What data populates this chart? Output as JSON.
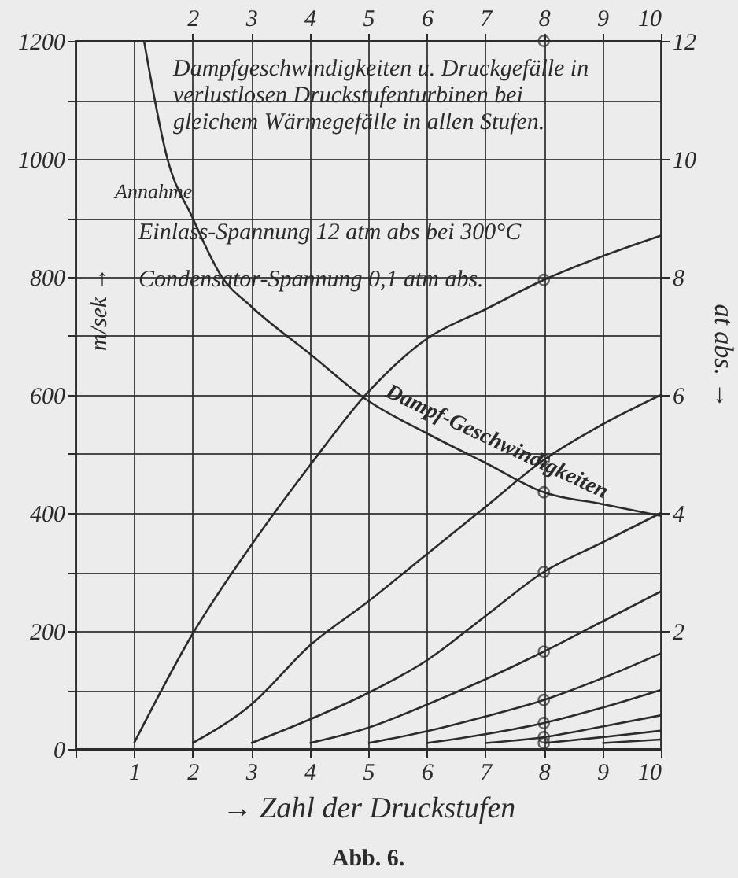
{
  "chart_data": {
    "type": "line",
    "title": "Dampfgeschwindigkeiten u. Druckgefälle in verlustlosen Druckstufenturbinen bei gleichem Wärmegefälle in allen Stufen.",
    "xlabel": "→ Zahl der Druckstufen",
    "ylabel": "m/sek →",
    "y2label": "at abs. →",
    "annotations": [
      "Annahme",
      "Einlass-Spannung 12 atm abs bei 300°C",
      "Condensator-Spannung 0,1 atm abs.",
      "Abb. 6."
    ],
    "xlim": [
      0,
      10
    ],
    "xticks": [
      {
        "value": 0,
        "label": null
      },
      1,
      2,
      3,
      4,
      5,
      6,
      7,
      8,
      9,
      10
    ],
    "x2lim": [
      0,
      10
    ],
    "x2ticks": [
      2,
      3,
      4,
      5,
      6,
      7,
      8,
      9,
      10
    ],
    "ylim": [
      0,
      1200
    ],
    "yticks": [
      0,
      {
        "value": 100,
        "label": null
      },
      200,
      {
        "value": 300,
        "label": null
      },
      400,
      {
        "value": 500,
        "label": null
      },
      600,
      {
        "value": 700,
        "label": null
      },
      800,
      {
        "value": 900,
        "label": null
      },
      1000,
      {
        "value": 1100,
        "label": null
      },
      1200
    ],
    "y2lim": [
      0,
      12
    ],
    "y2ticks": [
      2,
      4,
      6,
      8,
      10,
      12
    ],
    "grid": true,
    "line_style": "solid",
    "series": [
      {
        "name": "Dampf-Geschwindigkeiten",
        "color": "#2b2b2b",
        "marker": "none",
        "x": [
          1.17,
          1.57,
          2,
          2.5,
          3,
          4,
          5,
          6,
          7,
          8,
          9,
          10
        ],
        "values": [
          1200,
          1000,
          900,
          800,
          750,
          670,
          590,
          535,
          485,
          435,
          415,
          395
        ]
      },
      {
        "color": "#2b2b2b",
        "axis": "y2",
        "marker": "none",
        "x": [
          1,
          2,
          3,
          4,
          5,
          6,
          7,
          8,
          9,
          10
        ],
        "values": [
          0.1,
          1.95,
          3.45,
          4.8,
          6.05,
          6.95,
          7.45,
          7.95,
          8.35,
          8.7
        ]
      },
      {
        "color": "#2b2b2b",
        "axis": "y2",
        "marker": "none",
        "x": [
          2,
          3,
          4,
          5,
          6,
          7,
          8,
          9,
          10
        ],
        "values": [
          0.1,
          0.75,
          1.75,
          2.5,
          3.3,
          4.1,
          4.9,
          5.5,
          6.0
        ]
      },
      {
        "color": "#2b2b2b",
        "axis": "y2",
        "marker": "none",
        "x": [
          3,
          4,
          5,
          6,
          7,
          8,
          9,
          10
        ],
        "values": [
          0.1,
          0.5,
          0.95,
          1.5,
          2.25,
          3.0,
          3.5,
          4.0
        ]
      },
      {
        "color": "#2b2b2b",
        "axis": "y2",
        "marker": "none",
        "x": [
          4,
          5,
          6,
          7,
          8,
          9,
          10
        ],
        "values": [
          0.1,
          0.36,
          0.75,
          1.18,
          1.65,
          2.16,
          2.67
        ]
      },
      {
        "color": "#2b2b2b",
        "axis": "y2",
        "marker": "none",
        "x": [
          5,
          6,
          7,
          8,
          9,
          10
        ],
        "values": [
          0.1,
          0.3,
          0.55,
          0.83,
          1.2,
          1.62
        ]
      },
      {
        "color": "#2b2b2b",
        "axis": "y2",
        "marker": "none",
        "x": [
          6,
          7,
          8,
          9,
          10
        ],
        "values": [
          0.1,
          0.25,
          0.44,
          0.7,
          1.0
        ]
      },
      {
        "color": "#2b2b2b",
        "axis": "y2",
        "marker": "none",
        "x": [
          7,
          8,
          9,
          10
        ],
        "values": [
          0.1,
          0.2,
          0.38,
          0.57
        ]
      },
      {
        "color": "#2b2b2b",
        "axis": "y2",
        "marker": "none",
        "x": [
          8,
          9,
          10
        ],
        "values": [
          0.1,
          0.2,
          0.31
        ]
      },
      {
        "color": "#2b2b2b",
        "axis": "y2",
        "marker": "none",
        "x": [
          9,
          10
        ],
        "values": [
          0.1,
          0.16
        ]
      },
      {
        "type": "scatter",
        "color": "#2b2b2b",
        "axis": "y2",
        "marker": "circle",
        "x": [
          8,
          8,
          8,
          8,
          8,
          8,
          8,
          8,
          8
        ],
        "values": [
          12,
          7.95,
          4.9,
          3.0,
          1.65,
          0.83,
          0.44,
          0.2,
          0.1
        ]
      },
      {
        "type": "scatter",
        "color": "#2b2b2b",
        "marker": "circle",
        "x": [
          8
        ],
        "values": [
          435
        ]
      }
    ]
  }
}
